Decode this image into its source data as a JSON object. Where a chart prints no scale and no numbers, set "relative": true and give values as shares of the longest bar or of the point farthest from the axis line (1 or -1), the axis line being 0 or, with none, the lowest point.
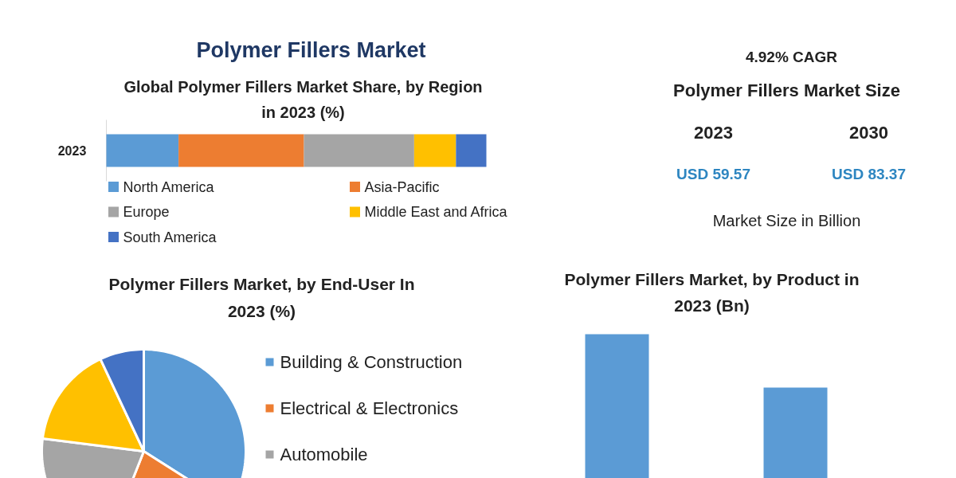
{
  "chart_data": [
    {
      "type": "other",
      "title": "Polymer Fillers Market"
    },
    {
      "type": "bar",
      "title": "Global Polymer Fillers Market Share, by Region in 2023 (%)",
      "orientation": "horizontal",
      "stacked": true,
      "relative": true,
      "legend": "bottom",
      "categories": [
        "2023"
      ],
      "series": [
        {
          "name": "North America",
          "color": "#5b9bd5",
          "values": [
            0.19
          ]
        },
        {
          "name": "Asia-Pacific",
          "color": "#ed7d31",
          "values": [
            0.33
          ]
        },
        {
          "name": "Europe",
          "color": "#a5a5a5",
          "values": [
            0.29
          ]
        },
        {
          "name": "Middle East and Africa",
          "color": "#ffc000",
          "values": [
            0.11
          ]
        },
        {
          "name": "South America",
          "color": "#4472c4",
          "values": [
            0.08
          ]
        }
      ]
    },
    {
      "type": "other",
      "subtitle": "4.92% CAGR",
      "title": "Polymer Fillers Market Size",
      "categories": [
        "2023",
        "2030"
      ],
      "values": [
        59.57,
        83.37
      ],
      "value_labels": [
        "USD 59.57",
        "USD 83.37"
      ],
      "annotations": [
        "Market Size in Billion"
      ]
    },
    {
      "type": "pie",
      "title": "Polymer Fillers Market, by End-User In 2023 (%)",
      "legend": "right",
      "categories": [
        "Building & Construction",
        "Electrical & Electronics",
        "Automobile",
        null,
        null
      ],
      "values": [
        34,
        22,
        21,
        16,
        7
      ],
      "colors": [
        "#5b9bd5",
        "#ed7d31",
        "#a5a5a5",
        "#ffc000",
        "#4472c4"
      ]
    },
    {
      "type": "bar",
      "title": "Polymer Fillers Market, by Product in 2023 (Bn)",
      "relative": true,
      "categories": [
        null,
        null
      ],
      "series": [
        {
          "color": "#5b9bd5",
          "values": [
            1,
            0.77
          ]
        }
      ]
    }
  ]
}
